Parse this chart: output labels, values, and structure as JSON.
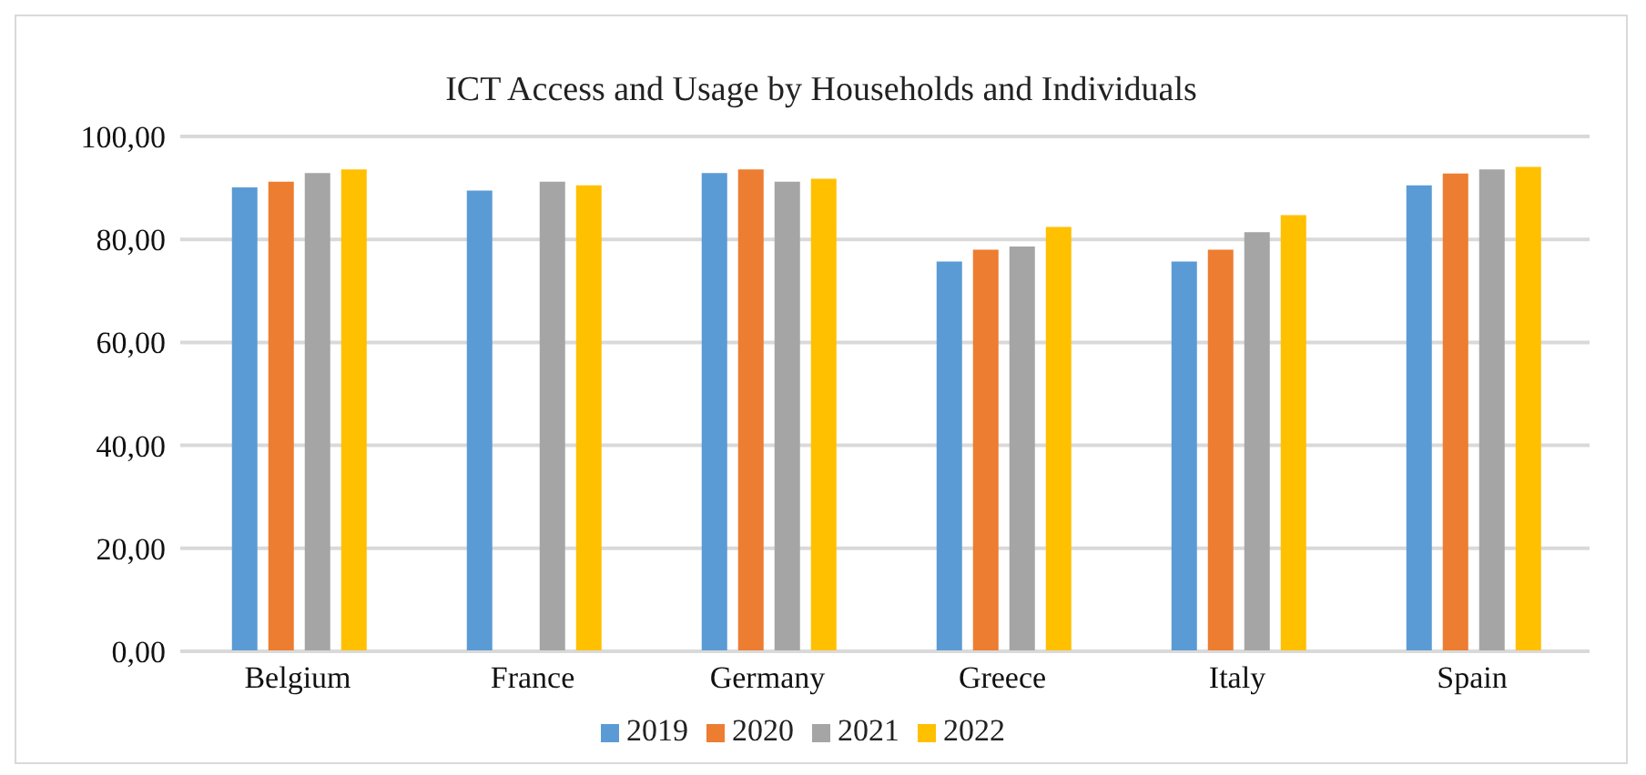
{
  "chart_data": {
    "type": "bar",
    "title": "ICT Access and Usage by Households and Individuals",
    "categories": [
      "Belgium",
      "France",
      "Germany",
      "Greece",
      "Italy",
      "Spain"
    ],
    "series": [
      {
        "name": "2019",
        "color": "#5b9bd5",
        "values": [
          90.1,
          89.5,
          92.9,
          75.7,
          75.7,
          90.5
        ]
      },
      {
        "name": "2020",
        "color": "#ed7d31",
        "values": [
          91.2,
          null,
          93.6,
          78.0,
          78.0,
          92.8
        ]
      },
      {
        "name": "2021",
        "color": "#a5a5a5",
        "values": [
          92.9,
          91.2,
          91.2,
          78.6,
          81.4,
          93.6
        ]
      },
      {
        "name": "2022",
        "color": "#ffc000",
        "values": [
          93.6,
          90.5,
          91.8,
          82.4,
          84.7,
          94.1
        ]
      }
    ],
    "ylim": [
      0,
      100
    ],
    "yticks": [
      {
        "value": 0,
        "label": "0,00"
      },
      {
        "value": 20,
        "label": "20,00"
      },
      {
        "value": 40,
        "label": "40,00"
      },
      {
        "value": 60,
        "label": "60,00"
      },
      {
        "value": 80,
        "label": "80,00"
      },
      {
        "value": 100,
        "label": "100,00"
      }
    ],
    "grid": "y",
    "legend": "bottom"
  }
}
